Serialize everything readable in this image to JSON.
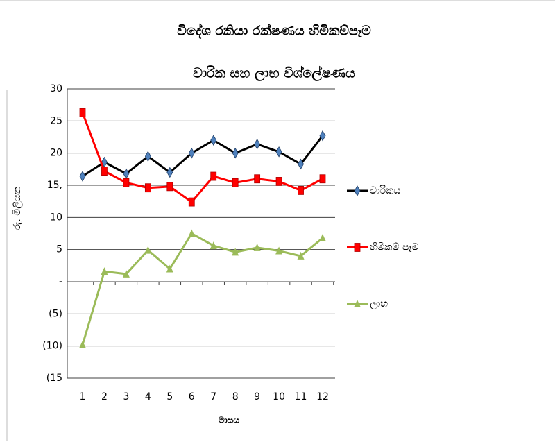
{
  "chart_data": {
    "type": "line",
    "title": "විදේශ රකියා රක්ෂණය හිමිකම්පෑම",
    "subtitle": "වාරික සහ ලාභ  විශ්ලේෂණය",
    "x_label": "මාසය",
    "y_label": "රු. මිලියන",
    "categories": [
      1,
      2,
      3,
      4,
      5,
      6,
      7,
      8,
      9,
      10,
      11,
      12
    ],
    "series": [
      {
        "name": "වාරිකය",
        "color": "#000000",
        "marker": "diamond",
        "marker_color": "#4f81bd",
        "values": [
          16.4,
          18.6,
          16.8,
          19.5,
          17.0,
          20.0,
          22.0,
          20.0,
          21.4,
          20.2,
          18.3,
          22.7
        ]
      },
      {
        "name": "හිමිකම් පෑම",
        "color": "#ff0000",
        "marker": "square",
        "marker_color": "#ff0000",
        "values": [
          26.3,
          17.2,
          15.4,
          14.6,
          14.8,
          12.4,
          16.4,
          15.4,
          16.0,
          15.6,
          14.2,
          16.0
        ]
      },
      {
        "name": "ලාභ",
        "color": "#9bbb59",
        "marker": "triangle",
        "marker_color": "#9bbb59",
        "values": [
          -9.8,
          1.6,
          1.2,
          4.9,
          2.0,
          7.5,
          5.6,
          4.6,
          5.3,
          4.8,
          4.0,
          6.8
        ]
      }
    ],
    "ylim": [
      -15,
      30
    ],
    "yticks": [
      30,
      25,
      20,
      {
        "value": 15,
        "label": "15,"
      },
      10,
      5,
      {
        "value": 0,
        "label": "-"
      },
      {
        "value": -5,
        "label": "(5)"
      },
      {
        "value": -10,
        "label": "(10)"
      },
      {
        "value": -15,
        "label": "(15"
      }
    ],
    "grid": true,
    "legend": "right"
  }
}
